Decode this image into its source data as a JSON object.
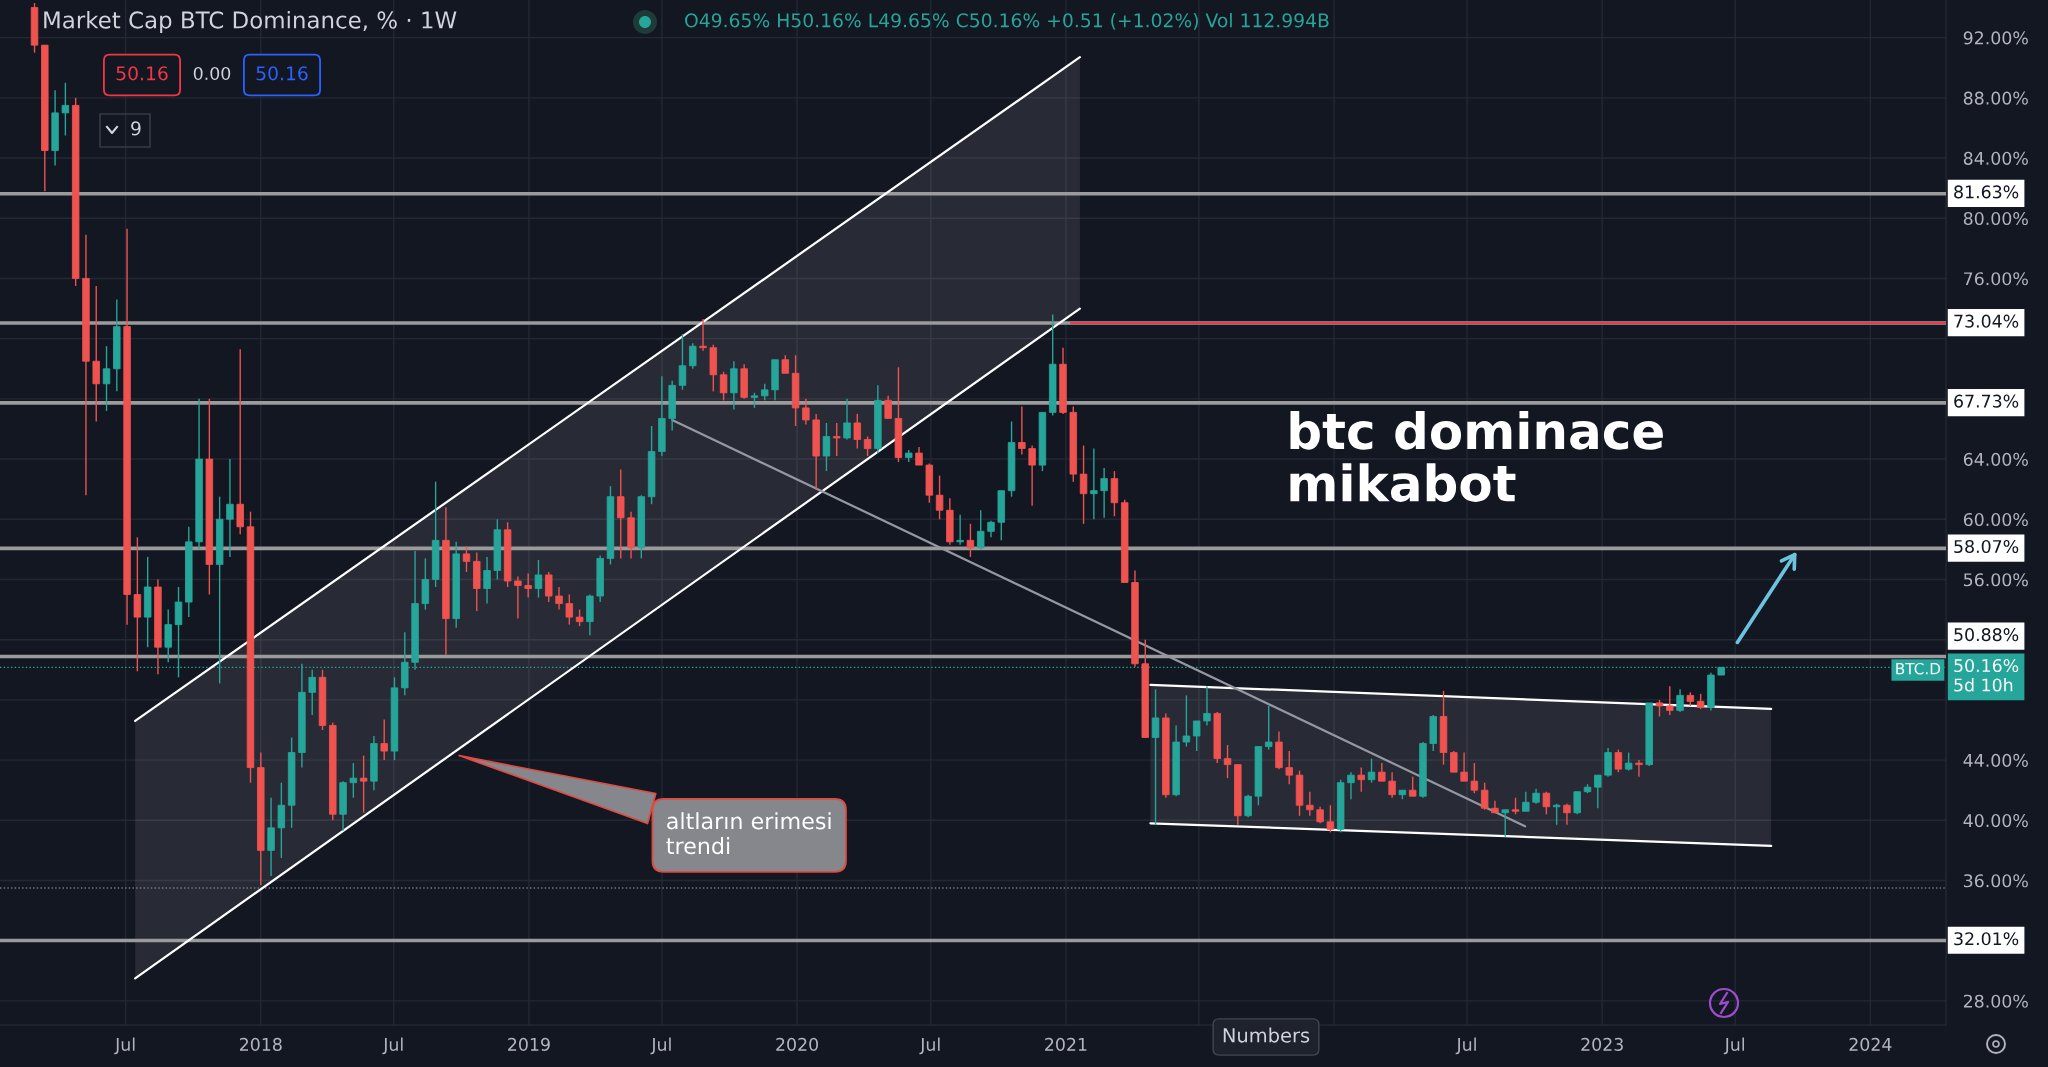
{
  "chart_data": {
    "type": "candlestick",
    "title": "Market Cap BTC Dominance, % · 1W",
    "subtitle": "O49.65% H50.16% L49.65% C50.16% +0.51 (+1.02%) Vol 112.994B",
    "x": [
      "2017-02-27",
      "2017-03-13",
      "2017-03-27",
      "2017-04-10",
      "2017-04-24",
      "2017-05-08",
      "2017-05-22",
      "2017-06-05",
      "2017-06-19",
      "2017-07-03",
      "2017-07-17",
      "2017-07-31",
      "2017-08-14",
      "2017-08-28",
      "2017-09-11",
      "2017-09-25",
      "2017-10-09",
      "2017-10-23",
      "2017-11-06",
      "2017-11-20",
      "2017-12-04",
      "2017-12-18",
      "2018-01-01",
      "2018-01-15",
      "2018-01-29",
      "2018-02-12",
      "2018-02-26",
      "2018-03-12",
      "2018-03-26",
      "2018-04-09",
      "2018-04-23",
      "2018-05-07",
      "2018-05-21",
      "2018-06-04",
      "2018-06-18",
      "2018-07-02",
      "2018-07-16",
      "2018-07-30",
      "2018-08-13",
      "2018-08-27",
      "2018-09-10",
      "2018-09-24",
      "2018-10-08",
      "2018-10-22",
      "2018-11-05",
      "2018-11-19",
      "2018-12-03",
      "2018-12-17",
      "2018-12-31",
      "2019-01-14",
      "2019-01-28",
      "2019-02-11",
      "2019-02-25",
      "2019-03-11",
      "2019-03-25",
      "2019-04-08",
      "2019-04-22",
      "2019-05-06",
      "2019-05-20",
      "2019-06-03",
      "2019-06-17",
      "2019-07-01",
      "2019-07-15",
      "2019-07-29",
      "2019-08-12",
      "2019-08-26",
      "2019-09-09",
      "2019-09-23",
      "2019-10-07",
      "2019-10-21",
      "2019-11-04",
      "2019-11-18",
      "2019-12-02",
      "2019-12-16",
      "2019-12-30",
      "2020-01-13",
      "2020-01-27",
      "2020-02-10",
      "2020-02-24",
      "2020-03-09",
      "2020-03-23",
      "2020-04-06",
      "2020-04-20",
      "2020-05-04",
      "2020-05-18",
      "2020-06-01",
      "2020-06-15",
      "2020-06-29",
      "2020-07-13",
      "2020-07-27",
      "2020-08-10",
      "2020-08-24",
      "2020-09-07",
      "2020-09-21",
      "2020-10-05",
      "2020-10-19",
      "2020-11-02",
      "2020-11-16",
      "2020-11-30",
      "2020-12-14",
      "2020-12-28",
      "2021-01-11",
      "2021-01-25",
      "2021-02-08",
      "2021-02-22",
      "2021-03-08",
      "2021-03-22",
      "2021-04-05",
      "2021-04-19",
      "2021-05-03",
      "2021-05-17",
      "2021-05-31",
      "2021-06-14",
      "2021-06-28",
      "2021-07-12",
      "2021-07-26",
      "2021-08-09",
      "2021-08-23",
      "2021-09-06",
      "2021-09-20",
      "2021-10-04",
      "2021-10-18",
      "2021-11-01",
      "2021-11-15",
      "2021-11-29",
      "2021-12-13",
      "2021-12-27",
      "2022-01-10",
      "2022-01-24",
      "2022-02-07",
      "2022-02-21",
      "2022-03-07",
      "2022-03-21",
      "2022-04-04",
      "2022-04-18",
      "2022-05-02",
      "2022-05-16",
      "2022-05-30",
      "2022-06-13",
      "2022-06-27",
      "2022-07-11",
      "2022-07-25",
      "2022-08-08",
      "2022-08-22",
      "2022-09-05",
      "2022-09-19",
      "2022-10-03",
      "2022-10-17",
      "2022-10-31",
      "2022-11-14",
      "2022-11-28",
      "2022-12-12",
      "2022-12-26",
      "2023-01-09",
      "2023-01-23",
      "2023-02-06",
      "2023-02-20",
      "2023-03-06",
      "2023-03-20",
      "2023-04-03",
      "2023-04-17",
      "2023-05-01",
      "2023-05-15",
      "2023-05-29",
      "2023-06-12"
    ],
    "ohlc": [
      [
        94.0,
        94.3,
        91.0,
        91.5
      ],
      [
        91.5,
        91.5,
        81.8,
        84.5
      ],
      [
        84.5,
        88.5,
        83.5,
        87.0
      ],
      [
        87.0,
        89.0,
        85.5,
        87.5
      ],
      [
        87.5,
        88.0,
        75.5,
        76.0
      ],
      [
        76.0,
        78.9,
        61.6,
        70.5
      ],
      [
        70.5,
        75.5,
        66.5,
        69.0
      ],
      [
        69.0,
        71.5,
        67.2,
        70.0
      ],
      [
        70.0,
        74.6,
        68.5,
        72.8
      ],
      [
        72.8,
        79.3,
        53.0,
        55.0
      ],
      [
        55.0,
        58.8,
        49.9,
        53.5
      ],
      [
        53.5,
        57.5,
        51.5,
        55.5
      ],
      [
        55.5,
        56.0,
        49.7,
        51.5
      ],
      [
        51.5,
        54.0,
        50.5,
        53.0
      ],
      [
        53.0,
        55.5,
        49.5,
        54.5
      ],
      [
        54.5,
        59.5,
        53.5,
        58.5
      ],
      [
        58.5,
        68.0,
        58.0,
        64.0
      ],
      [
        64.0,
        68.0,
        55.0,
        57.0
      ],
      [
        57.0,
        61.5,
        49.1,
        60.0
      ],
      [
        60.0,
        64.0,
        57.5,
        61.0
      ],
      [
        61.0,
        71.3,
        59.0,
        59.5
      ],
      [
        59.5,
        60.5,
        42.5,
        43.5
      ],
      [
        43.5,
        44.5,
        35.7,
        38.0
      ],
      [
        38.0,
        41.5,
        36.3,
        39.5
      ],
      [
        39.5,
        42.5,
        37.5,
        41.0
      ],
      [
        41.0,
        45.5,
        39.5,
        44.5
      ],
      [
        44.5,
        50.4,
        43.5,
        48.5
      ],
      [
        48.5,
        50.0,
        47.0,
        49.5
      ],
      [
        49.5,
        50.0,
        46.0,
        46.3
      ],
      [
        46.3,
        46.5,
        40.0,
        40.4
      ],
      [
        40.4,
        42.6,
        39.3,
        42.5
      ],
      [
        42.5,
        43.8,
        41.5,
        42.8
      ],
      [
        42.8,
        44.3,
        40.5,
        42.6
      ],
      [
        42.6,
        45.6,
        42.0,
        45.1
      ],
      [
        45.1,
        46.7,
        44.0,
        44.6
      ],
      [
        44.6,
        49.5,
        44.0,
        48.8
      ],
      [
        48.8,
        52.5,
        48.3,
        50.5
      ],
      [
        50.5,
        57.9,
        50.0,
        54.4
      ],
      [
        54.4,
        57.4,
        54.0,
        56.0
      ],
      [
        56.0,
        62.5,
        55.5,
        58.6
      ],
      [
        58.6,
        60.8,
        51.0,
        53.4
      ],
      [
        53.4,
        58.5,
        52.8,
        57.7
      ],
      [
        57.7,
        58.2,
        56.5,
        57.2
      ],
      [
        57.2,
        57.8,
        53.9,
        55.4
      ],
      [
        55.4,
        57.5,
        54.4,
        56.6
      ],
      [
        56.6,
        60.0,
        56.0,
        59.3
      ],
      [
        59.3,
        59.8,
        55.5,
        55.9
      ],
      [
        55.9,
        56.2,
        53.4,
        55.6
      ],
      [
        55.6,
        56.4,
        54.8,
        55.4
      ],
      [
        55.4,
        57.3,
        54.8,
        56.3
      ],
      [
        56.3,
        56.5,
        54.5,
        54.9
      ],
      [
        54.9,
        55.5,
        54.0,
        54.4
      ],
      [
        54.4,
        55.0,
        53.0,
        53.5
      ],
      [
        53.5,
        54.0,
        52.9,
        53.2
      ],
      [
        53.2,
        55.0,
        52.3,
        54.9
      ],
      [
        54.9,
        57.6,
        54.5,
        57.4
      ],
      [
        57.4,
        62.2,
        57.0,
        61.5
      ],
      [
        61.5,
        63.3,
        57.4,
        60.1
      ],
      [
        60.1,
        60.5,
        57.4,
        58.1
      ],
      [
        58.1,
        61.6,
        57.4,
        61.5
      ],
      [
        61.5,
        66.2,
        61.0,
        64.5
      ],
      [
        64.5,
        69.5,
        64.2,
        66.7
      ],
      [
        66.7,
        69.2,
        65.9,
        68.9
      ],
      [
        68.9,
        72.3,
        68.6,
        70.2
      ],
      [
        70.2,
        71.7,
        70.0,
        71.5
      ],
      [
        71.5,
        73.3,
        71.2,
        71.4
      ],
      [
        71.4,
        71.6,
        68.5,
        69.6
      ],
      [
        69.6,
        69.8,
        67.9,
        68.4
      ],
      [
        68.4,
        70.5,
        67.3,
        70.0
      ],
      [
        70.0,
        70.3,
        68.0,
        68.1
      ],
      [
        68.1,
        68.4,
        67.4,
        68.2
      ],
      [
        68.2,
        69.0,
        67.9,
        68.6
      ],
      [
        68.6,
        70.6,
        67.9,
        70.6
      ],
      [
        70.6,
        70.9,
        69.7,
        69.7
      ],
      [
        69.7,
        70.9,
        66.2,
        67.4
      ],
      [
        67.4,
        68.0,
        66.3,
        66.6
      ],
      [
        66.6,
        67.0,
        62.0,
        64.2
      ],
      [
        64.2,
        66.4,
        63.2,
        65.5
      ],
      [
        65.5,
        66.4,
        64.2,
        65.4
      ],
      [
        65.4,
        68.0,
        65.3,
        66.4
      ],
      [
        66.4,
        67.0,
        64.7,
        65.3
      ],
      [
        65.3,
        65.5,
        64.2,
        64.7
      ],
      [
        64.7,
        68.9,
        64.4,
        67.9
      ],
      [
        67.9,
        68.2,
        66.7,
        66.7
      ],
      [
        66.7,
        70.1,
        63.8,
        64.1
      ],
      [
        64.1,
        64.6,
        63.8,
        64.4
      ],
      [
        64.4,
        64.8,
        63.6,
        63.6
      ],
      [
        63.6,
        63.7,
        61.1,
        61.6
      ],
      [
        61.6,
        62.9,
        60.0,
        60.6
      ],
      [
        60.6,
        61.4,
        58.3,
        58.5
      ],
      [
        58.5,
        60.3,
        58.3,
        58.6
      ],
      [
        58.6,
        59.7,
        57.5,
        58.1
      ],
      [
        58.1,
        60.6,
        58.0,
        59.2
      ],
      [
        59.2,
        59.9,
        58.8,
        59.8
      ],
      [
        59.8,
        61.9,
        58.6,
        61.9
      ],
      [
        61.9,
        66.5,
        61.5,
        65.1
      ],
      [
        65.1,
        67.5,
        64.3,
        64.7
      ],
      [
        64.7,
        64.9,
        60.9,
        63.6
      ],
      [
        63.6,
        67.1,
        63.2,
        67.1
      ],
      [
        67.1,
        73.6,
        66.9,
        70.3
      ],
      [
        70.3,
        71.4,
        67.0,
        67.1
      ],
      [
        67.1,
        67.5,
        62.5,
        63.0
      ],
      [
        63.0,
        64.9,
        59.7,
        61.7
      ],
      [
        61.7,
        64.7,
        60.0,
        61.9
      ],
      [
        61.9,
        63.4,
        60.1,
        62.7
      ],
      [
        62.7,
        63.2,
        60.2,
        61.1
      ],
      [
        61.1,
        61.3,
        55.8,
        55.8
      ],
      [
        55.8,
        56.6,
        50.2,
        50.4
      ],
      [
        50.4,
        52.0,
        45.5,
        45.5
      ],
      [
        45.5,
        48.7,
        39.7,
        46.8
      ],
      [
        46.8,
        47.1,
        41.5,
        41.7
      ],
      [
        41.7,
        46.3,
        41.6,
        45.2
      ],
      [
        45.2,
        48.3,
        44.9,
        45.6
      ],
      [
        45.6,
        46.6,
        44.6,
        46.6
      ],
      [
        46.6,
        48.9,
        46.3,
        47.1
      ],
      [
        47.1,
        47.2,
        43.8,
        44.1
      ],
      [
        44.1,
        45.0,
        42.8,
        43.7
      ],
      [
        43.7,
        43.7,
        39.7,
        40.3
      ],
      [
        40.3,
        41.7,
        40.2,
        41.6
      ],
      [
        41.6,
        44.9,
        41.0,
        44.9
      ],
      [
        44.9,
        47.6,
        44.7,
        45.2
      ],
      [
        45.2,
        45.9,
        43.4,
        43.5
      ],
      [
        43.5,
        44.6,
        42.4,
        43.0
      ],
      [
        43.0,
        43.3,
        40.3,
        41.0
      ],
      [
        41.0,
        41.9,
        40.3,
        40.7
      ],
      [
        40.7,
        40.9,
        39.8,
        39.9
      ],
      [
        39.9,
        41.0,
        39.2,
        39.4
      ],
      [
        39.4,
        42.7,
        39.2,
        42.5
      ],
      [
        42.5,
        43.2,
        41.4,
        43.0
      ],
      [
        43.0,
        43.5,
        41.9,
        42.7
      ],
      [
        42.7,
        44.1,
        42.5,
        43.2
      ],
      [
        43.2,
        43.8,
        42.6,
        42.6
      ],
      [
        42.6,
        43.2,
        41.5,
        41.7
      ],
      [
        41.7,
        42.0,
        41.4,
        42.0
      ],
      [
        42.0,
        42.9,
        41.6,
        41.6
      ],
      [
        41.6,
        45.2,
        41.5,
        45.1
      ],
      [
        45.1,
        47.0,
        44.6,
        46.9
      ],
      [
        46.9,
        48.6,
        43.7,
        44.5
      ],
      [
        44.5,
        44.6,
        43.2,
        43.2
      ],
      [
        43.2,
        44.5,
        42.6,
        42.6
      ],
      [
        42.6,
        43.8,
        41.8,
        42.0
      ],
      [
        42.0,
        42.5,
        40.7,
        40.8
      ],
      [
        40.8,
        41.3,
        40.5,
        40.5
      ],
      [
        40.5,
        40.7,
        38.9,
        40.7
      ],
      [
        40.7,
        41.5,
        40.4,
        40.6
      ],
      [
        40.6,
        41.9,
        40.6,
        41.2
      ],
      [
        41.2,
        42.1,
        41.1,
        41.8
      ],
      [
        41.8,
        41.9,
        40.4,
        40.9
      ],
      [
        40.9,
        41.1,
        39.7,
        41.0
      ],
      [
        41.0,
        41.1,
        39.7,
        40.5
      ],
      [
        40.5,
        41.9,
        40.4,
        41.9
      ],
      [
        41.9,
        42.4,
        41.8,
        42.2
      ],
      [
        42.2,
        43.0,
        40.8,
        43.0
      ],
      [
        43.0,
        44.8,
        42.9,
        44.5
      ],
      [
        44.5,
        44.7,
        43.2,
        43.4
      ],
      [
        43.4,
        44.5,
        43.3,
        43.8
      ],
      [
        43.8,
        44.0,
        42.9,
        43.7
      ],
      [
        43.7,
        47.8,
        43.6,
        47.8
      ],
      [
        47.8,
        48.0,
        46.9,
        47.6
      ],
      [
        47.6,
        48.9,
        47.0,
        47.3
      ],
      [
        47.3,
        48.7,
        47.2,
        48.3
      ],
      [
        48.3,
        48.5,
        47.6,
        47.9
      ],
      [
        47.9,
        48.4,
        47.4,
        47.5
      ],
      [
        47.5,
        49.8,
        47.3,
        49.65
      ],
      [
        49.65,
        50.16,
        49.65,
        50.16
      ]
    ],
    "colors": [
      "#ef5350",
      "#ef5350",
      "#26a69a",
      "#26a69a",
      "#ef5350",
      "#ef5350",
      "#ef5350",
      "#26a69a",
      "#26a69a",
      "#ef5350",
      "#ef5350",
      "#26a69a",
      "#ef5350",
      "#26a69a",
      "#26a69a",
      "#26a69a",
      "#26a69a",
      "#ef5350",
      "#26a69a",
      "#26a69a",
      "#ef5350",
      "#ef5350",
      "#ef5350",
      "#26a69a",
      "#26a69a",
      "#26a69a",
      "#26a69a",
      "#26a69a",
      "#ef5350",
      "#ef5350",
      "#26a69a",
      "#26a69a",
      "#ef5350",
      "#26a69a",
      "#ef5350",
      "#26a69a",
      "#26a69a",
      "#26a69a",
      "#26a69a",
      "#26a69a",
      "#ef5350",
      "#26a69a",
      "#ef5350",
      "#ef5350",
      "#26a69a",
      "#26a69a",
      "#ef5350",
      "#ef5350",
      "#ef5350",
      "#26a69a",
      "#ef5350",
      "#ef5350",
      "#ef5350",
      "#ef5350",
      "#26a69a",
      "#26a69a",
      "#26a69a",
      "#ef5350",
      "#ef5350",
      "#26a69a",
      "#26a69a",
      "#26a69a",
      "#26a69a",
      "#26a69a",
      "#26a69a",
      "#ef5350",
      "#ef5350",
      "#ef5350",
      "#26a69a",
      "#ef5350",
      "#26a69a",
      "#26a69a",
      "#26a69a",
      "#ef5350",
      "#ef5350",
      "#ef5350",
      "#ef5350",
      "#26a69a",
      "#ef5350",
      "#26a69a",
      "#ef5350",
      "#ef5350",
      "#26a69a",
      "#ef5350",
      "#ef5350",
      "#26a69a",
      "#ef5350",
      "#ef5350",
      "#ef5350",
      "#ef5350",
      "#26a69a",
      "#ef5350",
      "#26a69a",
      "#26a69a",
      "#26a69a",
      "#26a69a",
      "#ef5350",
      "#ef5350",
      "#26a69a",
      "#26a69a",
      "#ef5350",
      "#ef5350",
      "#ef5350",
      "#26a69a",
      "#26a69a",
      "#ef5350",
      "#ef5350",
      "#ef5350",
      "#ef5350",
      "#26a69a",
      "#ef5350",
      "#26a69a",
      "#26a69a",
      "#26a69a",
      "#26a69a",
      "#ef5350",
      "#ef5350",
      "#ef5350",
      "#26a69a",
      "#26a69a",
      "#26a69a",
      "#ef5350",
      "#ef5350",
      "#ef5350",
      "#ef5350",
      "#ef5350",
      "#ef5350",
      "#26a69a",
      "#26a69a",
      "#ef5350",
      "#26a69a",
      "#ef5350",
      "#ef5350",
      "#26a69a",
      "#ef5350",
      "#26a69a",
      "#26a69a",
      "#ef5350",
      "#ef5350",
      "#ef5350",
      "#ef5350",
      "#ef5350",
      "#ef5350",
      "#26a69a",
      "#ef5350",
      "#26a69a",
      "#26a69a",
      "#ef5350",
      "#26a69a",
      "#ef5350",
      "#26a69a",
      "#26a69a",
      "#26a69a",
      "#26a69a",
      "#ef5350",
      "#26a69a",
      "#ef5350",
      "#26a69a",
      "#ef5350",
      "#ef5350",
      "#26a69a",
      "#ef5350",
      "#ef5350",
      "#26a69a",
      "#26a69a"
    ],
    "series": [
      {
        "type": "line",
        "x": [
          "2017-07-14",
          "2021-01-20"
        ],
        "values": [
          46.6,
          90.7
        ],
        "color": "#ffffff"
      },
      {
        "type": "line",
        "x": [
          "2017-07-14",
          "2021-01-20"
        ],
        "values": [
          29.5,
          74.0
        ],
        "color": "#ffffff",
        "lower": [
          29.5,
          74.0
        ],
        "upper": [
          46.6,
          90.7
        ]
      },
      {
        "type": "line",
        "x": [
          "2021-04-26",
          "2023-08-19"
        ],
        "values": [
          49.0,
          47.4
        ],
        "color": "#ffffff"
      },
      {
        "type": "line",
        "x": [
          "2021-04-26",
          "2023-08-19"
        ],
        "values": [
          39.8,
          38.3
        ],
        "color": "#ffffff",
        "lower": [
          39.8,
          38.3
        ],
        "upper": [
          49.0,
          47.4
        ]
      },
      {
        "type": "line",
        "x": [
          "2019-07-15",
          "2022-09-18"
        ],
        "values": [
          66.6,
          39.6
        ],
        "color": "#9598a1"
      },
      {
        "type": "line",
        "x": [
          "2021-01-08",
          "2024-04-13"
        ],
        "values": [
          73.04,
          73.04
        ],
        "color": "#f23645"
      }
    ],
    "xlim": [
      "2017-01-11",
      "2024-04-13"
    ],
    "ylim": [
      26.4,
      94.5
    ],
    "xticks": [
      {
        "value": "2017-07-01",
        "label": "Jul"
      },
      {
        "value": "2018-01-01",
        "label": "2018"
      },
      {
        "value": "2018-07-01",
        "label": "Jul"
      },
      {
        "value": "2019-01-01",
        "label": "2019"
      },
      {
        "value": "2019-07-01",
        "label": "Jul"
      },
      {
        "value": "2020-01-01",
        "label": "2020"
      },
      {
        "value": "2020-07-01",
        "label": "Jul"
      },
      {
        "value": "2021-01-01",
        "label": "2021"
      },
      {
        "value": "2021-07-01",
        "label": null
      },
      {
        "value": "2022-01-01",
        "label": null
      },
      {
        "value": "2022-07-01",
        "label": "Jul"
      },
      {
        "value": "2023-01-01",
        "label": "2023"
      },
      {
        "value": "2023-07-01",
        "label": "Jul"
      },
      {
        "value": "2024-01-01",
        "label": "2024"
      }
    ],
    "yticks": [
      {
        "value": 92,
        "label": "92.00%"
      },
      {
        "value": 88,
        "label": "88.00%"
      },
      {
        "value": 84,
        "label": "84.00%"
      },
      {
        "value": 80,
        "label": "80.00%"
      },
      {
        "value": 76,
        "label": "76.00%"
      },
      {
        "value": 72,
        "label": null
      },
      {
        "value": 68,
        "label": null
      },
      {
        "value": 64,
        "label": "64.00%"
      },
      {
        "value": 60,
        "label": "60.00%"
      },
      {
        "value": 56,
        "label": "56.00%"
      },
      {
        "value": 52,
        "label": null
      },
      {
        "value": 48,
        "label": null
      },
      {
        "value": 44,
        "label": "44.00%"
      },
      {
        "value": 40,
        "label": "40.00%"
      },
      {
        "value": 36,
        "label": "36.00%"
      },
      {
        "value": 32,
        "label": null
      },
      {
        "value": 28,
        "label": "28.00%"
      }
    ],
    "grid": true,
    "ref_lines": [
      {
        "axis": "y",
        "value": 81.63,
        "label": "81.63%",
        "color": "#9b9b9b"
      },
      {
        "axis": "y",
        "value": 73.04,
        "label": "73.04%",
        "color": "#9b9b9b"
      },
      {
        "axis": "y",
        "value": 67.73,
        "label": "67.73%",
        "color": "#9b9b9b"
      },
      {
        "axis": "y",
        "value": 58.07,
        "label": "58.07%",
        "color": "#9b9b9b"
      },
      {
        "axis": "y",
        "value": 50.88,
        "label": "50.88%",
        "color": "#9b9b9b"
      },
      {
        "axis": "y",
        "value": 32.01,
        "label": "32.01%",
        "color": "#9b9b9b"
      },
      {
        "axis": "y",
        "value": 50.16,
        "label": "50.16%\n5d 10h",
        "color": "#26a69a",
        "line_style": "dotted"
      },
      {
        "axis": "y",
        "value": 35.5,
        "color": "#787b86",
        "line_style": "dotted"
      }
    ],
    "annotations": [
      "50.16",
      "0.00",
      "50.16",
      "9",
      {
        "text": "altların erimesi\ntrendi",
        "x": "2018-09-28",
        "y": 44.3
      },
      "btc dominace\nmikabot",
      "BTC.D",
      "Numbers"
    ]
  }
}
